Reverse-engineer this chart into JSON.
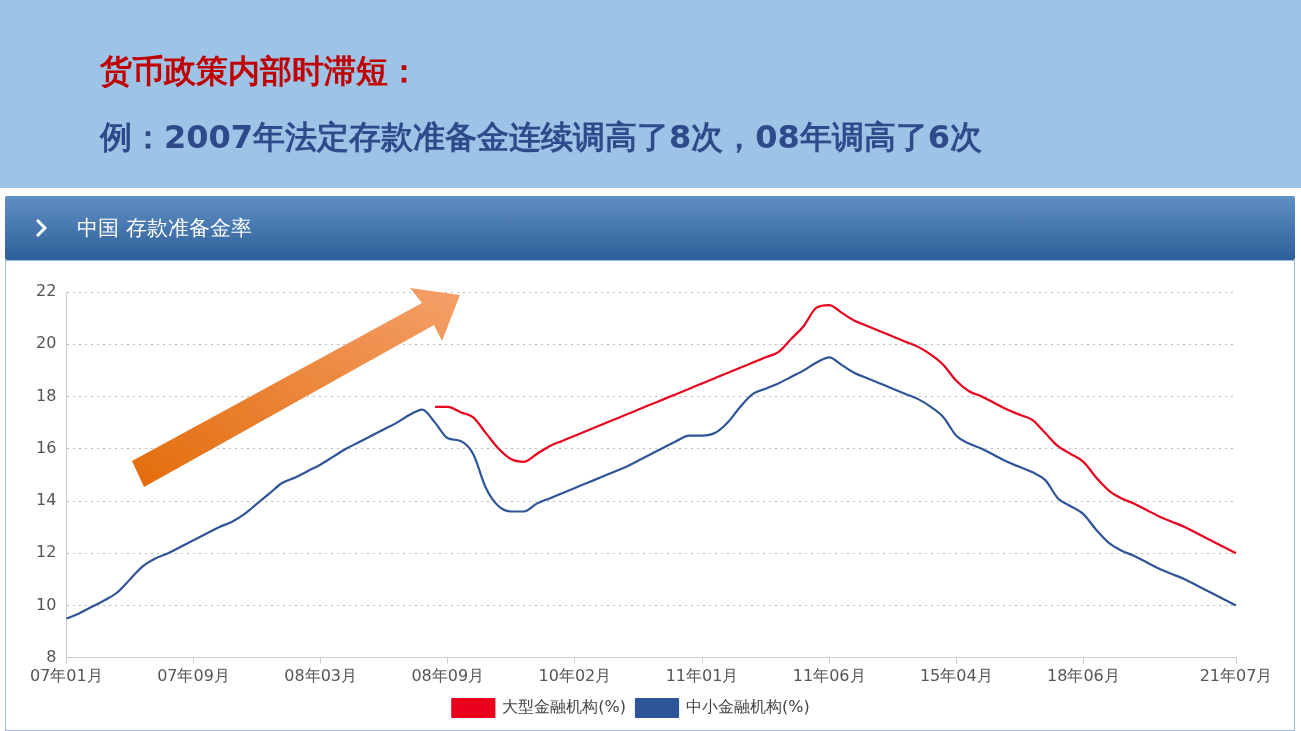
{
  "chart_data": {
    "type": "line",
    "title": "货币政策内部时滞短：",
    "subtitle": "例：2007年法定存款准备金连续调高了8次，08年调高了6次",
    "annotations": [
      "中国 存款准备金率"
    ],
    "categories": [
      "07年01月",
      null,
      null,
      null,
      null,
      null,
      null,
      null,
      null,
      null,
      "07年09月",
      null,
      null,
      null,
      null,
      null,
      null,
      null,
      null,
      null,
      "08年03月",
      null,
      null,
      null,
      null,
      null,
      null,
      null,
      null,
      null,
      "08年09月",
      null,
      null,
      null,
      null,
      null,
      null,
      null,
      null,
      null,
      "10年02月",
      null,
      null,
      null,
      null,
      null,
      null,
      null,
      null,
      null,
      "11年01月",
      null,
      null,
      null,
      null,
      null,
      null,
      null,
      null,
      null,
      "11年06月",
      null,
      null,
      null,
      null,
      null,
      null,
      null,
      null,
      null,
      "15年04月",
      null,
      null,
      null,
      null,
      null,
      null,
      null,
      null,
      null,
      "18年06月",
      null,
      null,
      null,
      null,
      null,
      null,
      null,
      null,
      null,
      null,
      null,
      "21年07月"
    ],
    "series": [
      {
        "name": "大型金融机构(%)",
        "color": "#e8001c",
        "values": [
          null,
          null,
          null,
          null,
          null,
          null,
          null,
          null,
          null,
          null,
          null,
          null,
          null,
          null,
          null,
          null,
          null,
          null,
          null,
          null,
          null,
          null,
          null,
          null,
          null,
          null,
          null,
          null,
          null,
          17.6,
          17.6,
          17.4,
          17.2,
          16.6,
          16.0,
          15.6,
          15.5,
          15.8,
          16.1,
          16.3,
          16.5,
          16.7,
          16.9,
          17.1,
          17.3,
          17.5,
          17.7,
          17.9,
          18.1,
          18.3,
          18.5,
          18.7,
          18.9,
          19.1,
          19.3,
          19.5,
          19.7,
          20.2,
          20.7,
          21.4,
          21.5,
          21.2,
          20.9,
          20.7,
          20.5,
          20.3,
          20.1,
          19.9,
          19.6,
          19.2,
          18.6,
          18.2,
          18.0,
          17.75,
          17.5,
          17.3,
          17.1,
          16.6,
          16.1,
          15.8,
          15.5,
          14.9,
          14.4,
          14.1,
          13.9,
          13.65,
          13.4,
          13.2,
          13.0,
          12.75,
          12.5,
          12.25,
          12.0
        ]
      },
      {
        "name": "中小金融机构(%)",
        "color": "#2e5597",
        "values": [
          9.5,
          9.7,
          9.95,
          10.2,
          10.5,
          11.0,
          11.5,
          11.8,
          12.0,
          12.25,
          12.5,
          12.75,
          13.0,
          13.2,
          13.5,
          13.9,
          14.3,
          14.7,
          14.9,
          15.15,
          15.4,
          15.7,
          16.0,
          16.25,
          16.5,
          16.75,
          17.0,
          17.3,
          17.5,
          17.0,
          16.4,
          16.3,
          15.8,
          14.5,
          13.8,
          13.6,
          13.6,
          13.9,
          14.1,
          14.3,
          14.5,
          14.7,
          14.9,
          15.1,
          15.3,
          15.55,
          15.8,
          16.05,
          16.3,
          16.5,
          16.5,
          16.6,
          17.0,
          17.6,
          18.1,
          18.3,
          18.5,
          18.75,
          19.0,
          19.3,
          19.5,
          19.2,
          18.9,
          18.7,
          18.5,
          18.3,
          18.1,
          17.9,
          17.6,
          17.2,
          16.5,
          16.2,
          16.0,
          15.75,
          15.5,
          15.3,
          15.1,
          14.8,
          14.1,
          13.8,
          13.5,
          12.9,
          12.4,
          12.1,
          11.9,
          11.65,
          11.4,
          11.2,
          11.0,
          10.75,
          10.5,
          10.25,
          10.0
        ]
      }
    ],
    "ylim": [
      8,
      22
    ],
    "yticks": [
      8,
      10,
      12,
      14,
      16,
      18,
      20,
      22
    ],
    "grid": "y",
    "legend": "bottom"
  }
}
